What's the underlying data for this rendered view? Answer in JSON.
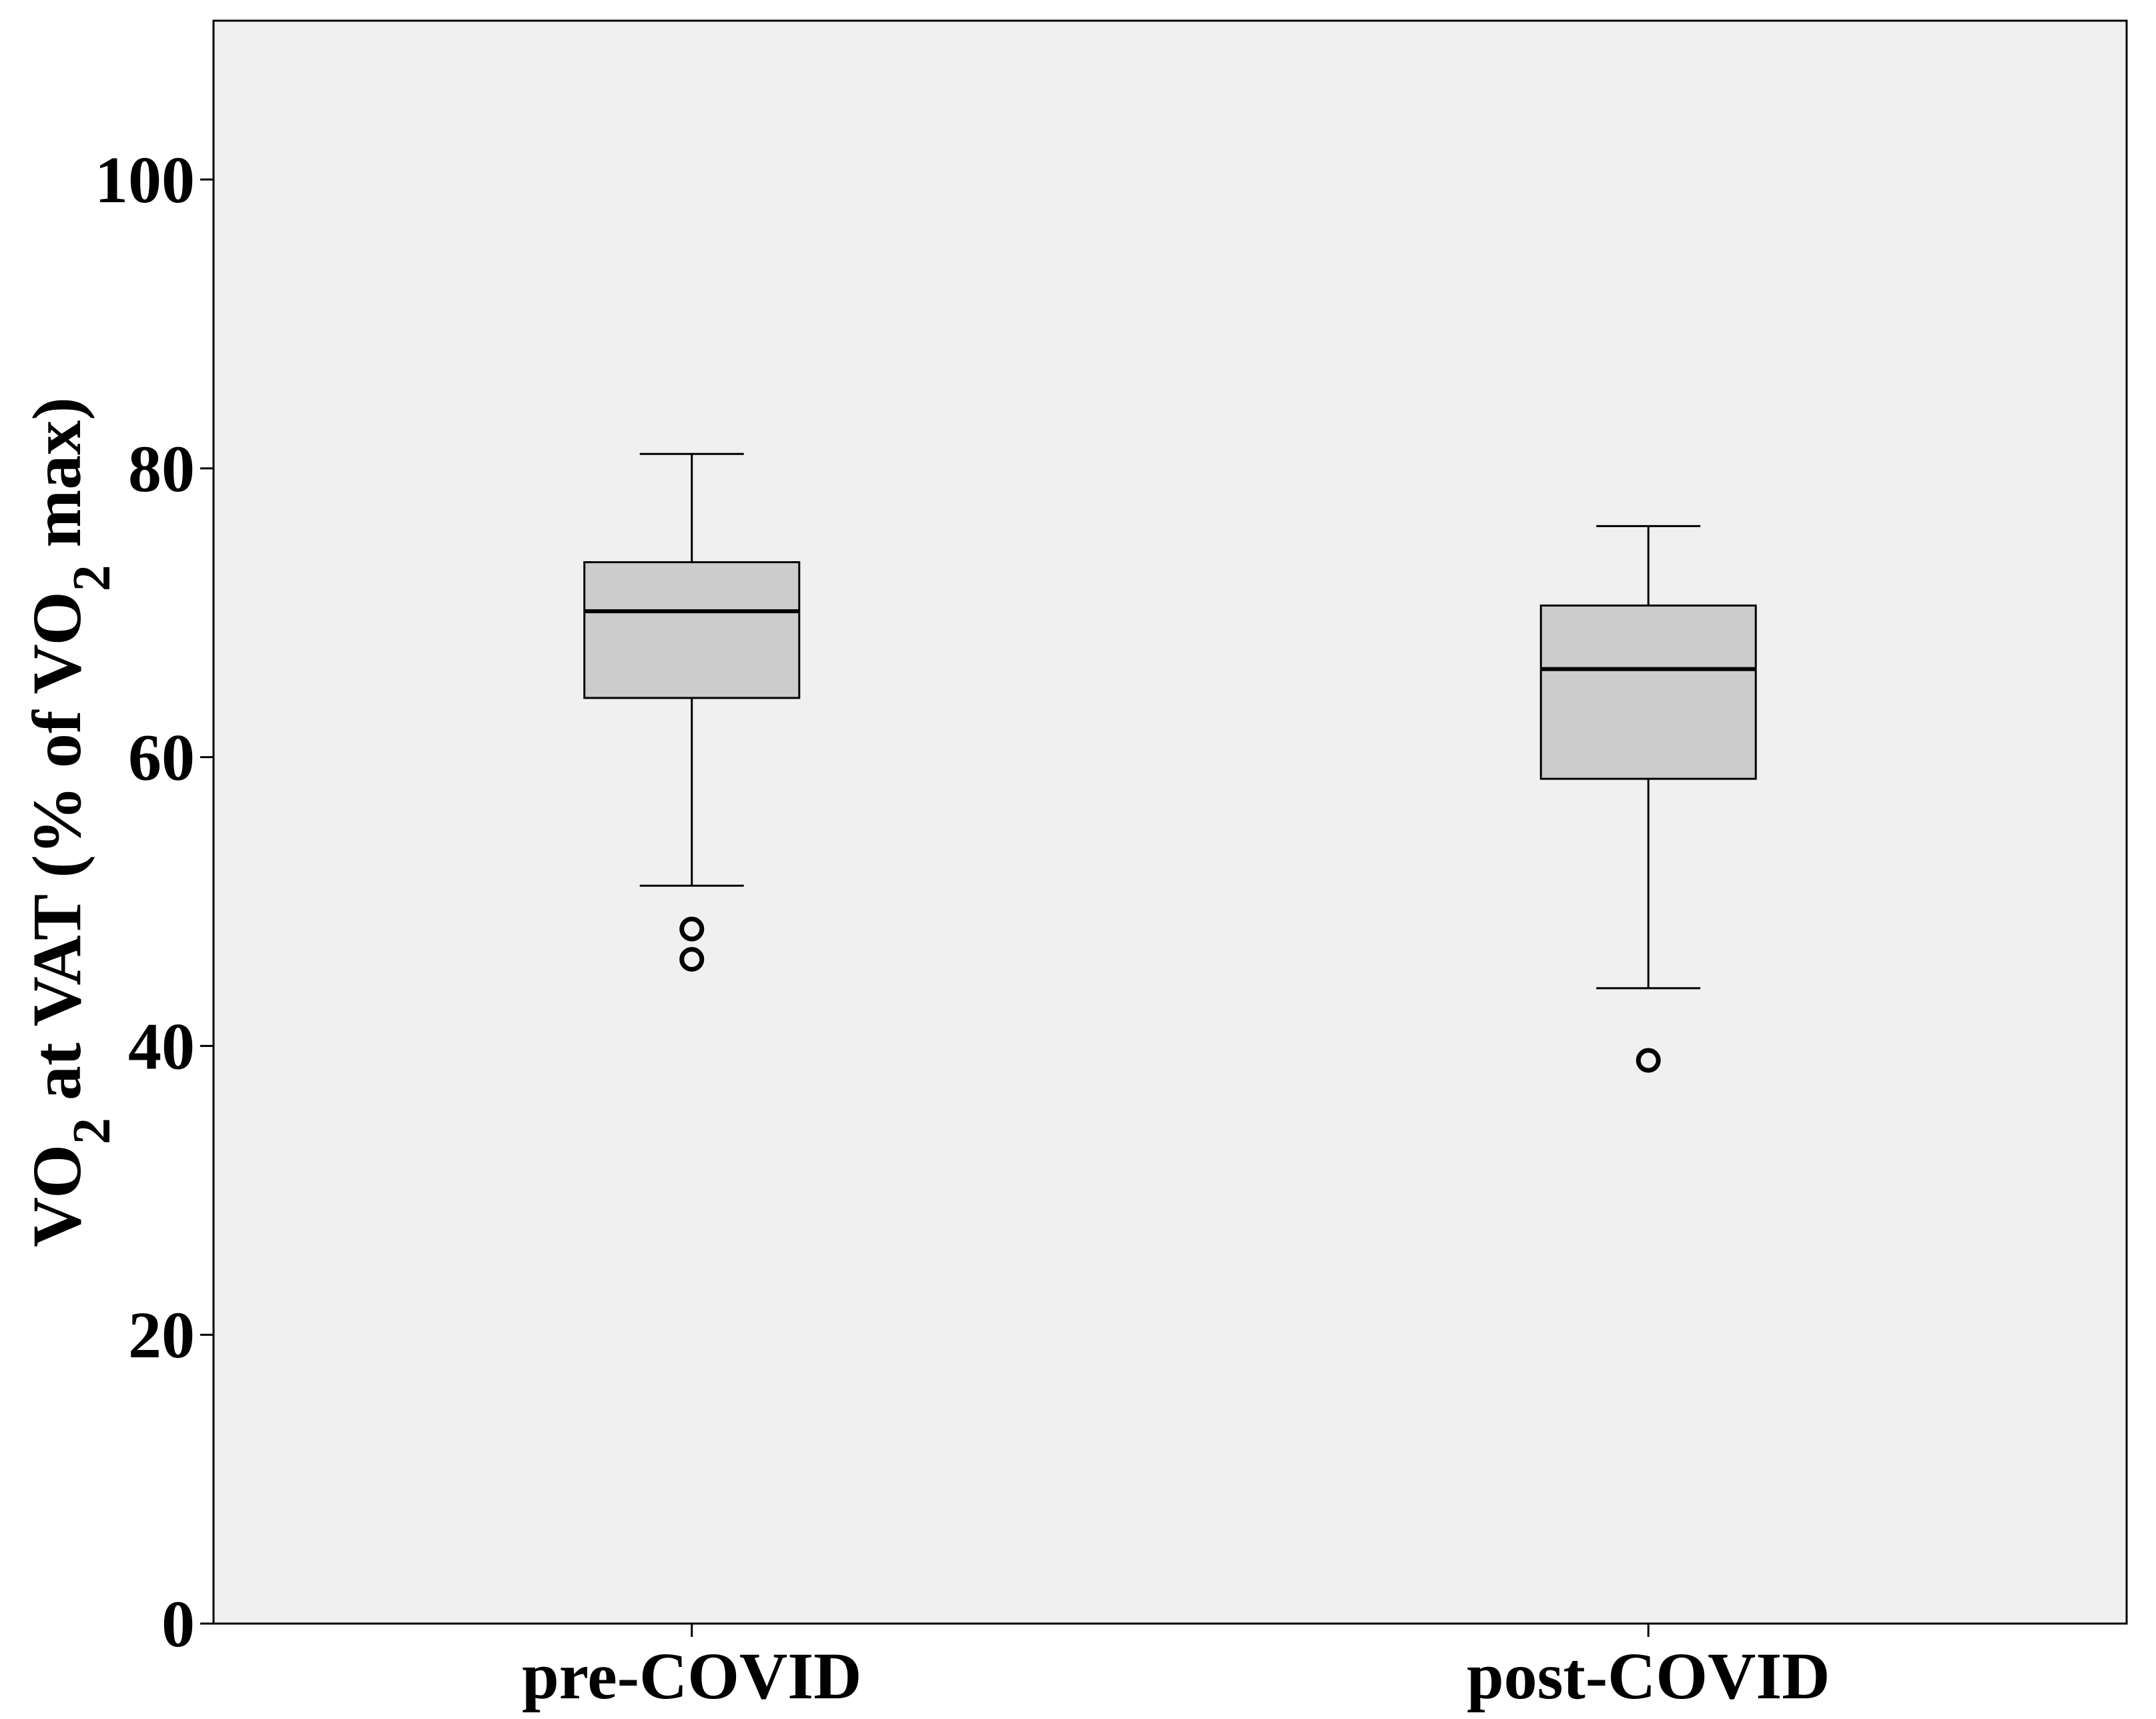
{
  "chart_data": {
    "type": "box",
    "y_label": [
      "VO",
      "2",
      " at VAT (% of VO",
      "2",
      " max)"
    ],
    "categories": [
      "pre-COVID",
      "post-COVID"
    ],
    "boxes": [
      {
        "whisker_low": 51.1,
        "q1": 64.1,
        "median": 70.1,
        "q3": 73.5,
        "whisker_high": 81.0,
        "outliers": [
          48.1,
          46.0
        ]
      },
      {
        "whisker_low": 44.0,
        "q1": 58.5,
        "median": 66.1,
        "q3": 70.5,
        "whisker_high": 76.0,
        "outliers": [
          39.0
        ]
      }
    ],
    "box_color": "#cccccc",
    "background": "#f0f0f0",
    "ylim": [
      0,
      111
    ],
    "yticks": [
      0,
      20,
      40,
      60,
      80,
      100
    ]
  }
}
